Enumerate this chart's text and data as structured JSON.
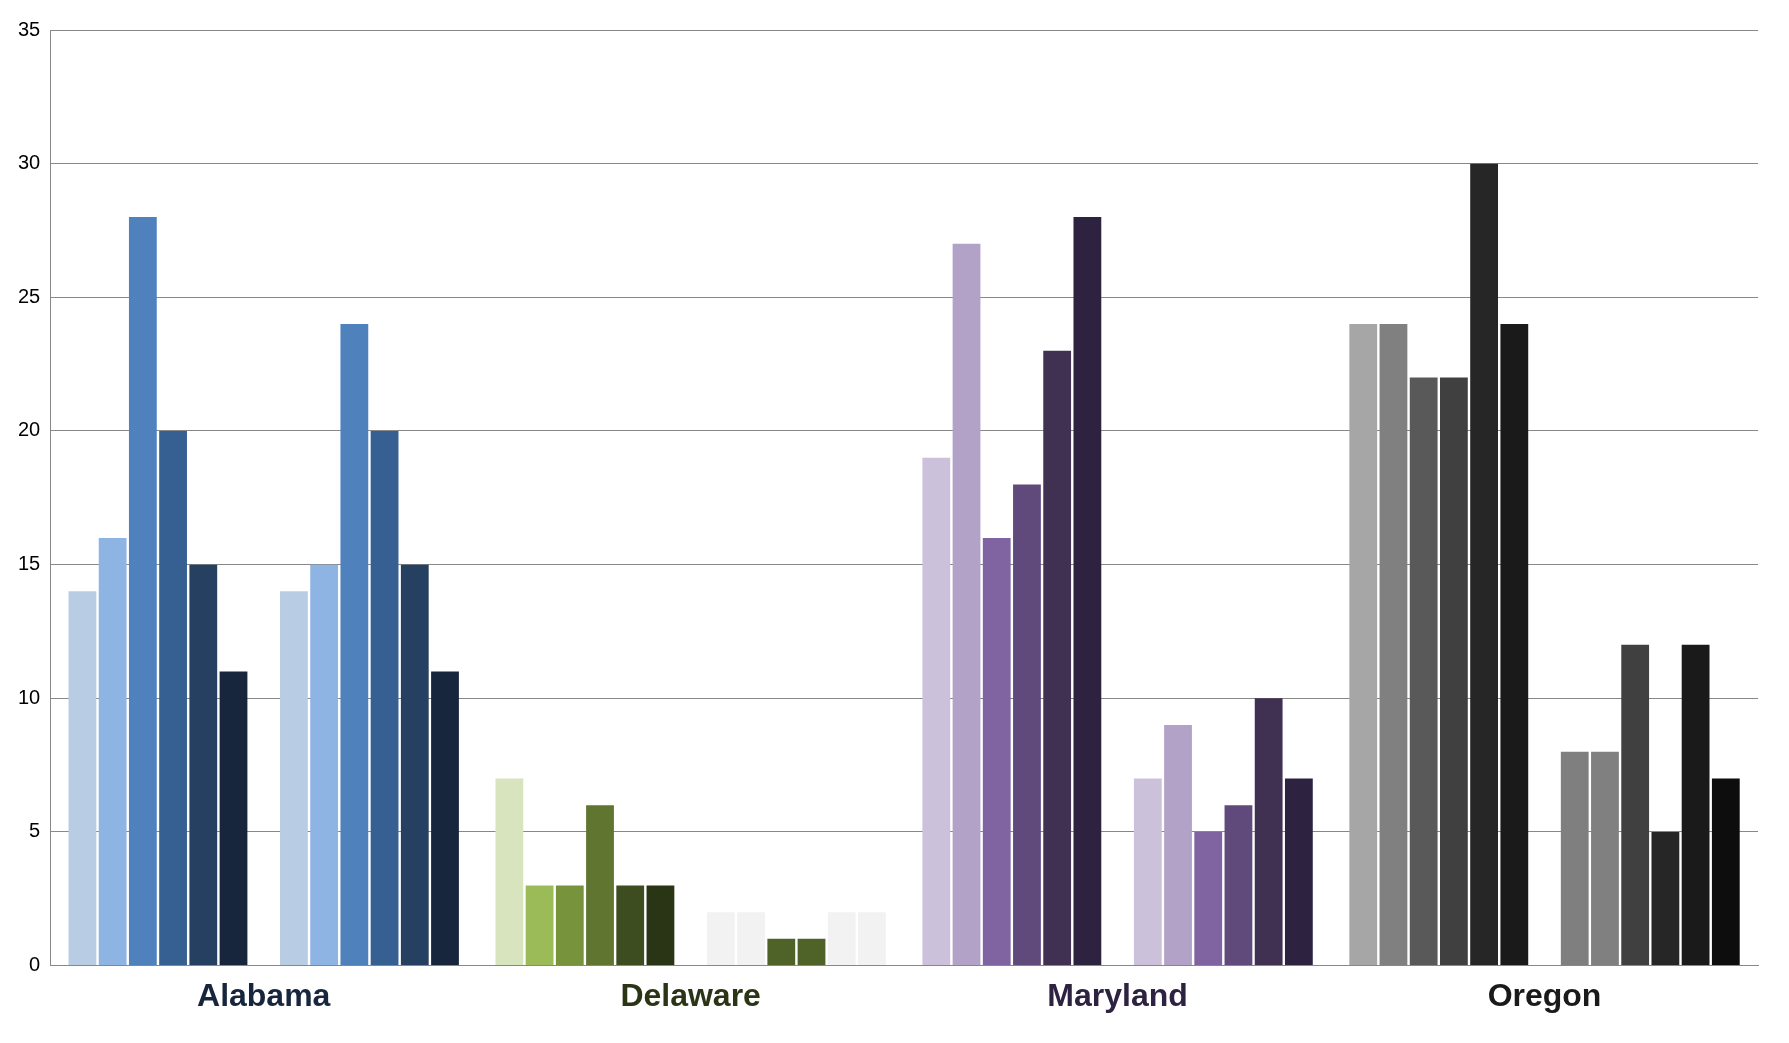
{
  "chart_data": {
    "type": "bar",
    "categories": [
      "Alabama",
      "Delaware",
      "Maryland",
      "Oregon"
    ],
    "series": [
      {
        "values": [
          14,
          7,
          19,
          24
        ],
        "colors": [
          "#b8cce4",
          "#d7e4bd",
          "#ccc1da",
          "#a6a6a6"
        ]
      },
      {
        "values": [
          16,
          3,
          27,
          24
        ],
        "colors": [
          "#8eb4e3",
          "#9bbb59",
          "#b3a2c7",
          "#808080"
        ]
      },
      {
        "values": [
          28,
          3,
          16,
          22
        ],
        "colors": [
          "#4f81bd",
          "#77933c",
          "#8064a2",
          "#595959"
        ]
      },
      {
        "values": [
          20,
          6,
          18,
          22
        ],
        "colors": [
          "#376092",
          "#5f7530",
          "#604a7b",
          "#404040"
        ]
      },
      {
        "values": [
          15,
          3,
          23,
          30
        ],
        "colors": [
          "#254061",
          "#3d4d20",
          "#403152",
          "#262626"
        ]
      },
      {
        "values": [
          11,
          3,
          28,
          24
        ],
        "colors": [
          "#17263d",
          "#2a3516",
          "#2d2240",
          "#1a1a1a"
        ]
      },
      {
        "values": [
          14,
          2,
          7,
          8
        ],
        "colors": [
          "#b8cce4",
          "#f2f2f2",
          "#ccc1da",
          "#7f7f7f"
        ]
      },
      {
        "values": [
          15,
          2,
          9,
          8
        ],
        "colors": [
          "#8eb4e3",
          "#f2f2f2",
          "#b3a2c7",
          "#808080"
        ]
      },
      {
        "values": [
          24,
          1,
          5,
          12
        ],
        "colors": [
          "#4f81bd",
          "#4f6228",
          "#8064a2",
          "#404040"
        ]
      },
      {
        "values": [
          20,
          1,
          6,
          5
        ],
        "colors": [
          "#376092",
          "#4f6228",
          "#604a7b",
          "#262626"
        ]
      },
      {
        "values": [
          15,
          2,
          10,
          12
        ],
        "colors": [
          "#254061",
          "#f2f2f2",
          "#403152",
          "#1a1a1a"
        ]
      },
      {
        "values": [
          11,
          2,
          7,
          7
        ],
        "colors": [
          "#17263d",
          "#f2f2f2",
          "#2d2240",
          "#0d0d0d"
        ]
      }
    ],
    "ylim": [
      0,
      35
    ],
    "yticks": [
      0,
      5,
      10,
      15,
      20,
      25,
      30,
      35
    ],
    "grid": "y",
    "legend": false
  }
}
